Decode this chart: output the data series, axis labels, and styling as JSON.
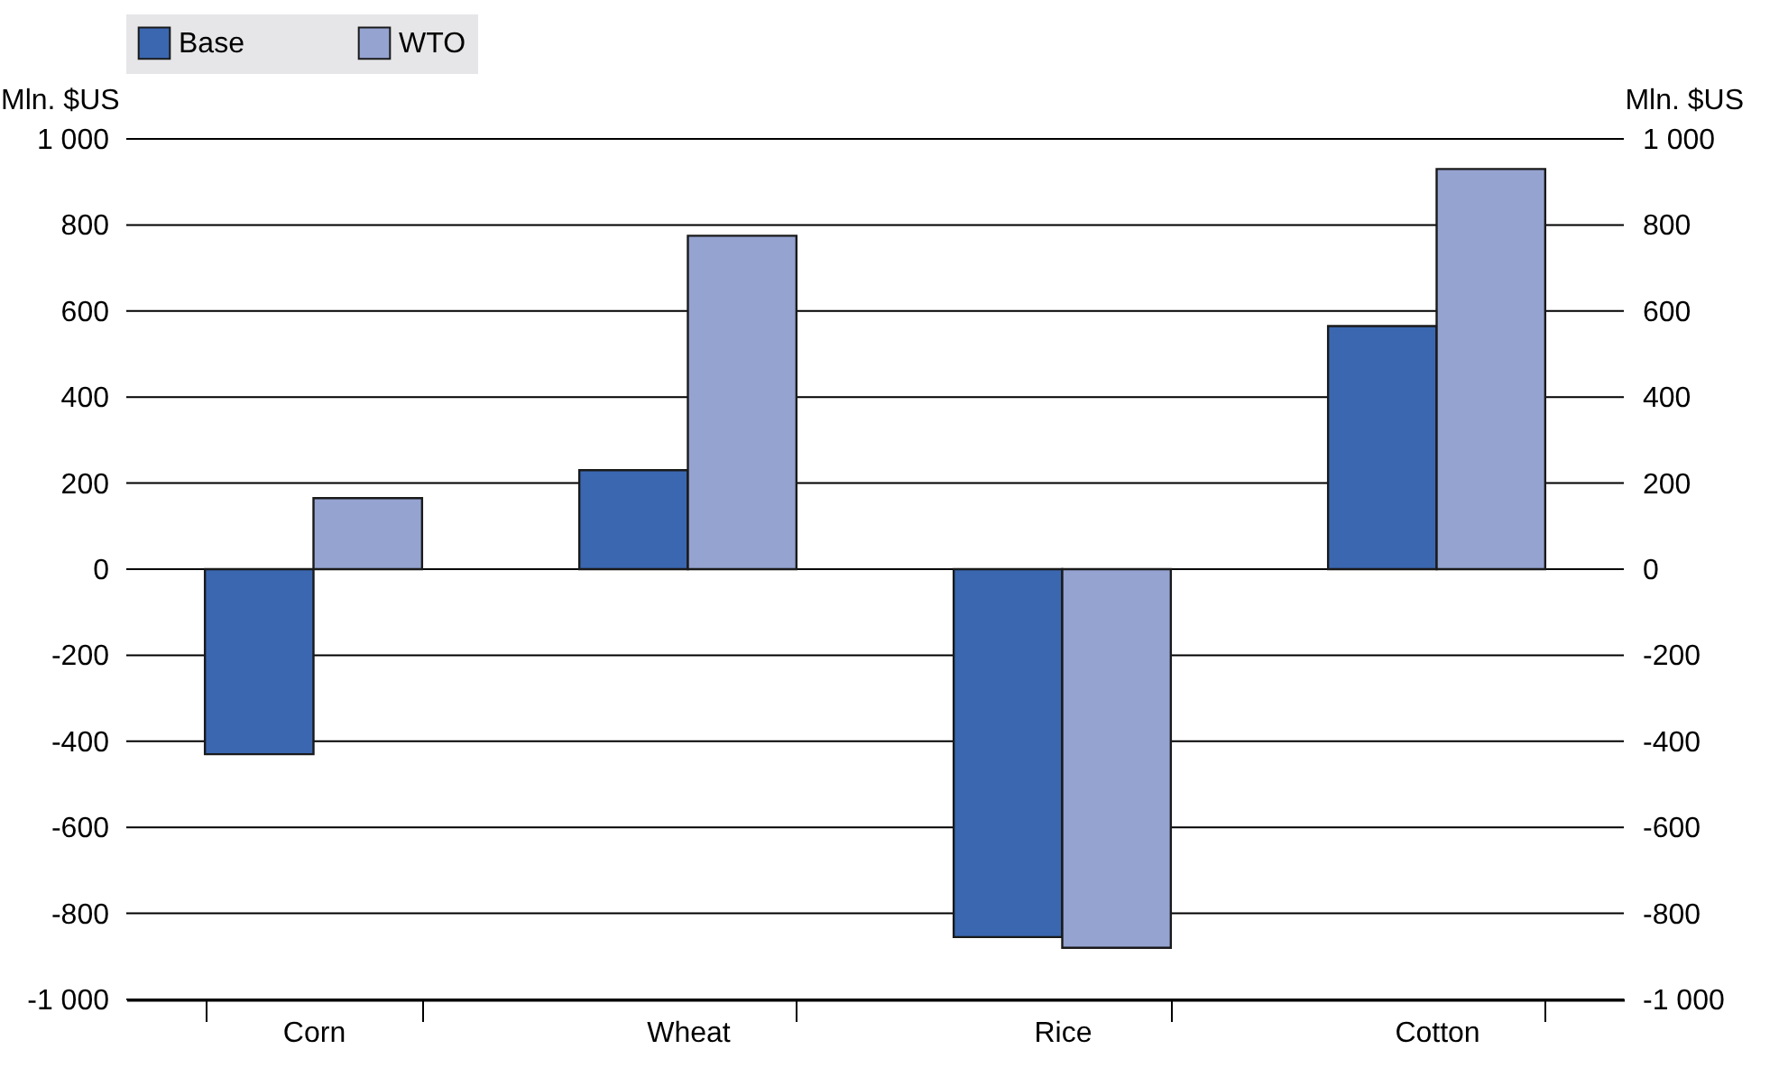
{
  "chart_data": {
    "type": "bar",
    "categories": [
      "Corn",
      "Wheat",
      "Rice",
      "Cotton"
    ],
    "series": [
      {
        "name": "Base",
        "color": "#3a67b0",
        "values": [
          -430,
          230,
          -855,
          565
        ]
      },
      {
        "name": "WTO",
        "color": "#95a3d1",
        "values": [
          165,
          775,
          -880,
          930
        ]
      }
    ],
    "ylabel": "Mln. $US",
    "y2label": "Mln. $US",
    "ylim": [
      -1000,
      1000
    ],
    "yticks": [
      {
        "value": -1000,
        "label": "-1 000"
      },
      -800,
      -600,
      -400,
      -200,
      0,
      200,
      400,
      600,
      800,
      {
        "value": 1000,
        "label": "1 000"
      }
    ],
    "y2lim": [
      -1000,
      1000
    ],
    "y2ticks": [
      {
        "value": -1000,
        "label": "-1 000"
      },
      -800,
      -600,
      -400,
      -200,
      0,
      200,
      400,
      600,
      800,
      {
        "value": 1000,
        "label": "1 000"
      }
    ],
    "grid": "y",
    "legend": "top"
  }
}
